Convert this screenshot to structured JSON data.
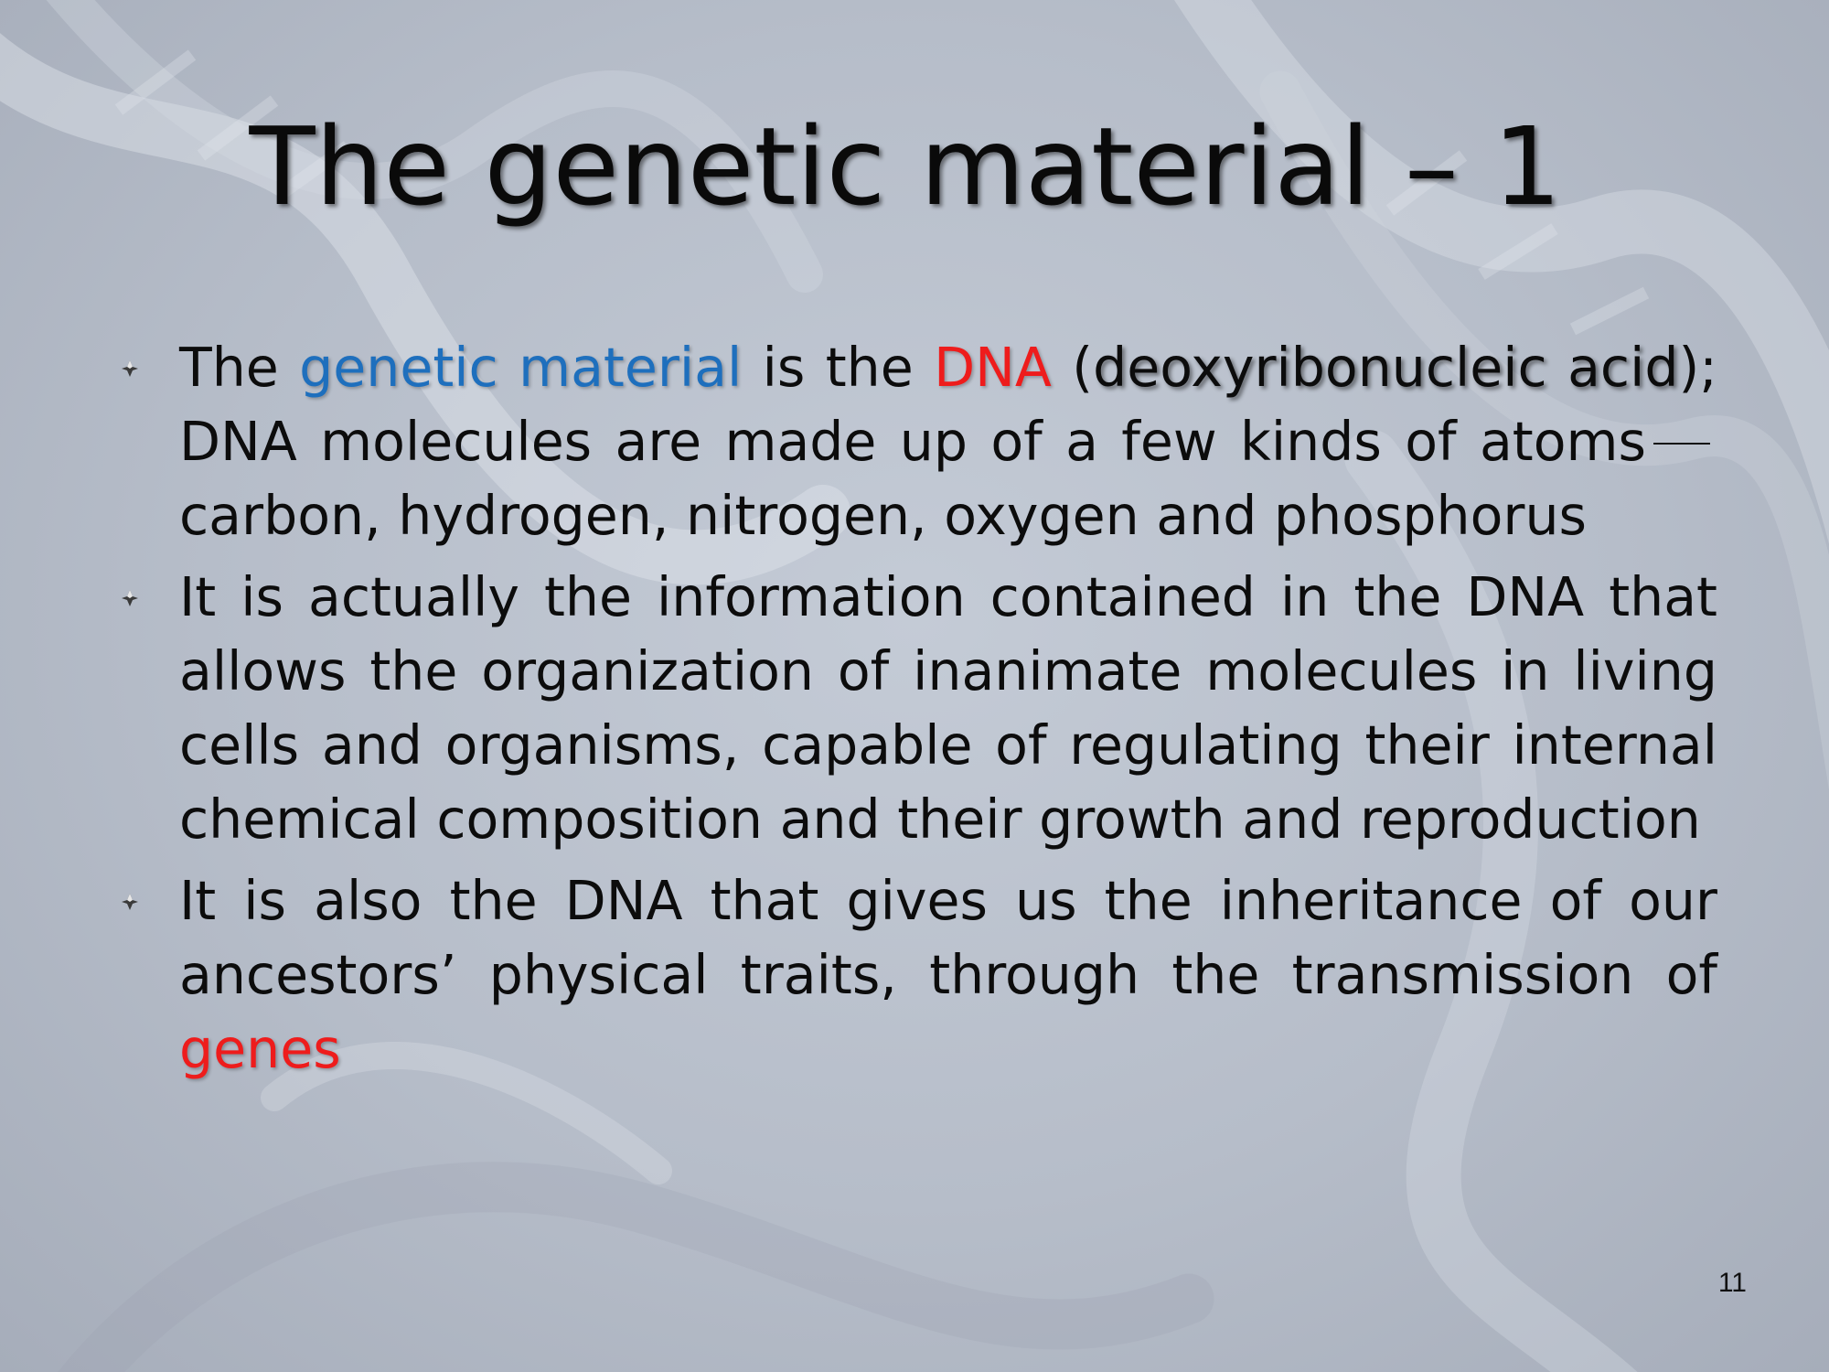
{
  "slide": {
    "title": "The genetic material – 1",
    "page_number": "11",
    "bullets": [
      {
        "t1": "The ",
        "hl_genetic": "genetic material",
        "t2": " is the ",
        "hl_dna": "DNA",
        "t3": " (",
        "hl_deoxy": "deoxyribonucleic acid",
        "t4": "); DNA molecules are made up of a few kinds of atoms",
        "t5": "carbon, hydrogen, nitrogen, oxygen and phosphorus"
      },
      {
        "text": "It is actually the information contained in the DNA that allows the organization of inanimate molecules in living cells and organisms, capable of regulating their internal chemical composition and their growth and reproduction"
      },
      {
        "t1": "It is also the DNA that gives us the inheritance of our ancestors’ physical traits, through the transmission of ",
        "hl_genes": "genes"
      }
    ]
  },
  "colors": {
    "highlight_blue": "#1e6fbd",
    "highlight_red": "#ee1c1c",
    "text": "#0c0c0c"
  },
  "icons": {
    "bullet": "arrow-bullet-icon",
    "background": "dna-helix-background"
  }
}
